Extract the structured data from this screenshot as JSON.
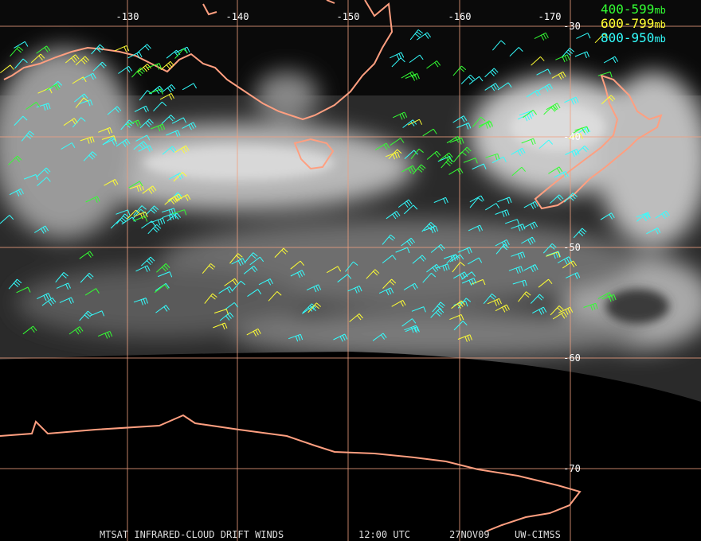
{
  "longitude_labels": [
    "-130",
    "-140",
    "-150",
    "-160",
    "-170"
  ],
  "latitude_labels": [
    "-30",
    "-40",
    "-50",
    "-60",
    "-70"
  ],
  "legend": [
    {
      "range": "400-599",
      "unit": "mb",
      "color": "#33ff33"
    },
    {
      "range": "600-799",
      "unit": "mb",
      "color": "#ffff33"
    },
    {
      "range": "800-950",
      "unit": "mb",
      "color": "#33ffff"
    }
  ],
  "footer": {
    "product": "MTSAT INFRARED-CLOUD DRIFT WINDS",
    "time": "12:00 UTC",
    "date": "27NOV09",
    "source": "UW-CIMSS"
  }
}
